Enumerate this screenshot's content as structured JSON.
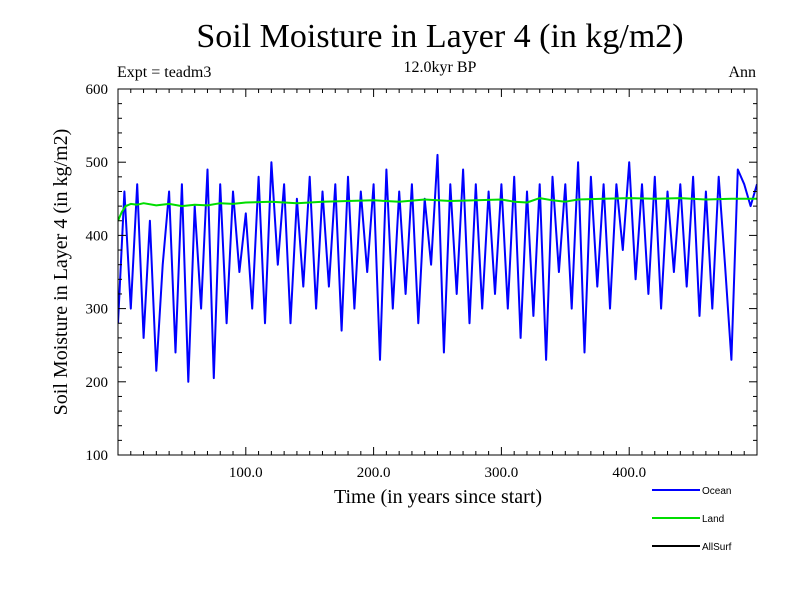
{
  "chart_data": {
    "type": "line",
    "title": "Soil Moisture in Layer 4 (in kg/m2)",
    "subtitle": "12.0kyr BP",
    "left_label": "Expt = teadm3",
    "right_label": "Ann",
    "xlabel": "Time (in years since start)",
    "ylabel": "Soil Moisture in Layer 4 (in kg/m2)",
    "xlim": [
      0,
      500
    ],
    "ylim": [
      100,
      600
    ],
    "x_ticks": [
      100,
      200,
      300,
      400
    ],
    "x_tick_labels": [
      "100.0",
      "200.0",
      "300.0",
      "400.0"
    ],
    "y_ticks": [
      100,
      200,
      300,
      400,
      500,
      600
    ],
    "y_tick_labels": [
      "100",
      "200",
      "300",
      "400",
      "500",
      "600"
    ],
    "legend_position": "bottom-right",
    "series": [
      {
        "name": "Ocean",
        "color": "#0000ff",
        "x": [
          0,
          5,
          10,
          15,
          20,
          25,
          30,
          35,
          40,
          45,
          50,
          55,
          60,
          65,
          70,
          75,
          80,
          85,
          90,
          95,
          100,
          105,
          110,
          115,
          120,
          125,
          130,
          135,
          140,
          145,
          150,
          155,
          160,
          165,
          170,
          175,
          180,
          185,
          190,
          195,
          200,
          205,
          210,
          215,
          220,
          225,
          230,
          235,
          240,
          245,
          250,
          255,
          260,
          265,
          270,
          275,
          280,
          285,
          290,
          295,
          300,
          305,
          310,
          315,
          320,
          325,
          330,
          335,
          340,
          345,
          350,
          355,
          360,
          365,
          370,
          375,
          380,
          385,
          390,
          395,
          400,
          405,
          410,
          415,
          420,
          425,
          430,
          435,
          440,
          445,
          450,
          455,
          460,
          465,
          470,
          475,
          480,
          485,
          490,
          495,
          500
        ],
        "values": [
          280,
          460,
          300,
          470,
          260,
          420,
          215,
          360,
          460,
          240,
          470,
          200,
          440,
          300,
          490,
          205,
          470,
          280,
          460,
          350,
          430,
          300,
          480,
          280,
          500,
          360,
          470,
          280,
          450,
          330,
          480,
          300,
          460,
          330,
          470,
          270,
          480,
          300,
          460,
          350,
          470,
          230,
          490,
          300,
          460,
          320,
          470,
          280,
          450,
          360,
          510,
          240,
          470,
          320,
          490,
          280,
          470,
          300,
          460,
          320,
          470,
          300,
          480,
          260,
          460,
          290,
          470,
          230,
          480,
          350,
          470,
          300,
          500,
          240,
          480,
          330,
          470,
          300,
          470,
          380,
          500,
          340,
          470,
          320,
          480,
          300,
          460,
          350,
          470,
          330,
          480,
          290,
          460,
          300,
          480,
          360,
          230,
          490,
          470,
          440,
          470
        ]
      },
      {
        "name": "Land",
        "color": "#00dd00",
        "x": [
          0,
          3,
          6,
          10,
          15,
          20,
          30,
          40,
          50,
          60,
          70,
          80,
          90,
          100,
          120,
          140,
          160,
          180,
          200,
          220,
          240,
          260,
          280,
          300,
          310,
          320,
          330,
          340,
          350,
          360,
          380,
          400,
          420,
          440,
          460,
          480,
          500
        ],
        "values": [
          420,
          432,
          440,
          443,
          442,
          444,
          441,
          443,
          440,
          442,
          441,
          444,
          443,
          445,
          446,
          444,
          446,
          447,
          448,
          446,
          449,
          447,
          448,
          449,
          446,
          445,
          451,
          448,
          446,
          449,
          450,
          451,
          450,
          451,
          449,
          450,
          450
        ]
      },
      {
        "name": "AllSurf",
        "color": "#000000",
        "x": [],
        "values": []
      }
    ]
  }
}
